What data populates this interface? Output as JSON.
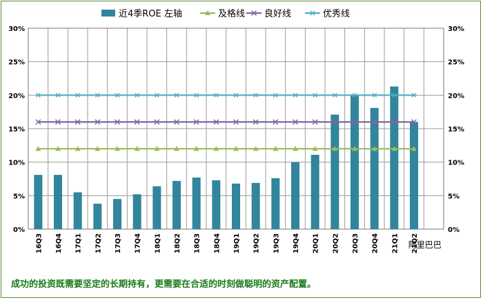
{
  "chart_data": {
    "type": "bar",
    "categories": [
      "16Q3",
      "16Q4",
      "17Q1",
      "17Q2",
      "17Q3",
      "17Q4",
      "18Q1",
      "18Q2",
      "18Q3",
      "18Q4",
      "19Q1",
      "19Q2",
      "19Q3",
      "19Q4",
      "20Q1",
      "20Q2",
      "20Q3",
      "20Q4",
      "21Q1",
      "21Q2"
    ],
    "x_group_label": "阿里巴巴",
    "y_ticks": [
      "0%",
      "5%",
      "10%",
      "15%",
      "20%",
      "25%",
      "30%"
    ],
    "ylim": [
      0,
      30
    ],
    "grid": true,
    "legend_position": "top",
    "series": [
      {
        "name": "近4季ROE 左轴",
        "type": "bar",
        "color": "#31859c",
        "values": [
          8.1,
          8.1,
          5.5,
          3.8,
          4.5,
          5.2,
          6.4,
          7.2,
          7.7,
          7.3,
          6.8,
          6.9,
          7.6,
          10.0,
          11.1,
          17.1,
          20.0,
          18.1,
          21.3,
          16.0
        ]
      },
      {
        "name": "及格线",
        "type": "line",
        "marker": "triangle",
        "color": "#9bbb59",
        "value": 12
      },
      {
        "name": "良好线",
        "type": "line",
        "marker": "x",
        "color": "#8064a2",
        "value": 16
      },
      {
        "name": "优秀线",
        "type": "line",
        "marker": "star",
        "color": "#4bacc6",
        "value": 20
      }
    ]
  },
  "caption": "成功的投资既需要坚定的长期持有，更需要在合适的时刻做聪明的资产配置。"
}
